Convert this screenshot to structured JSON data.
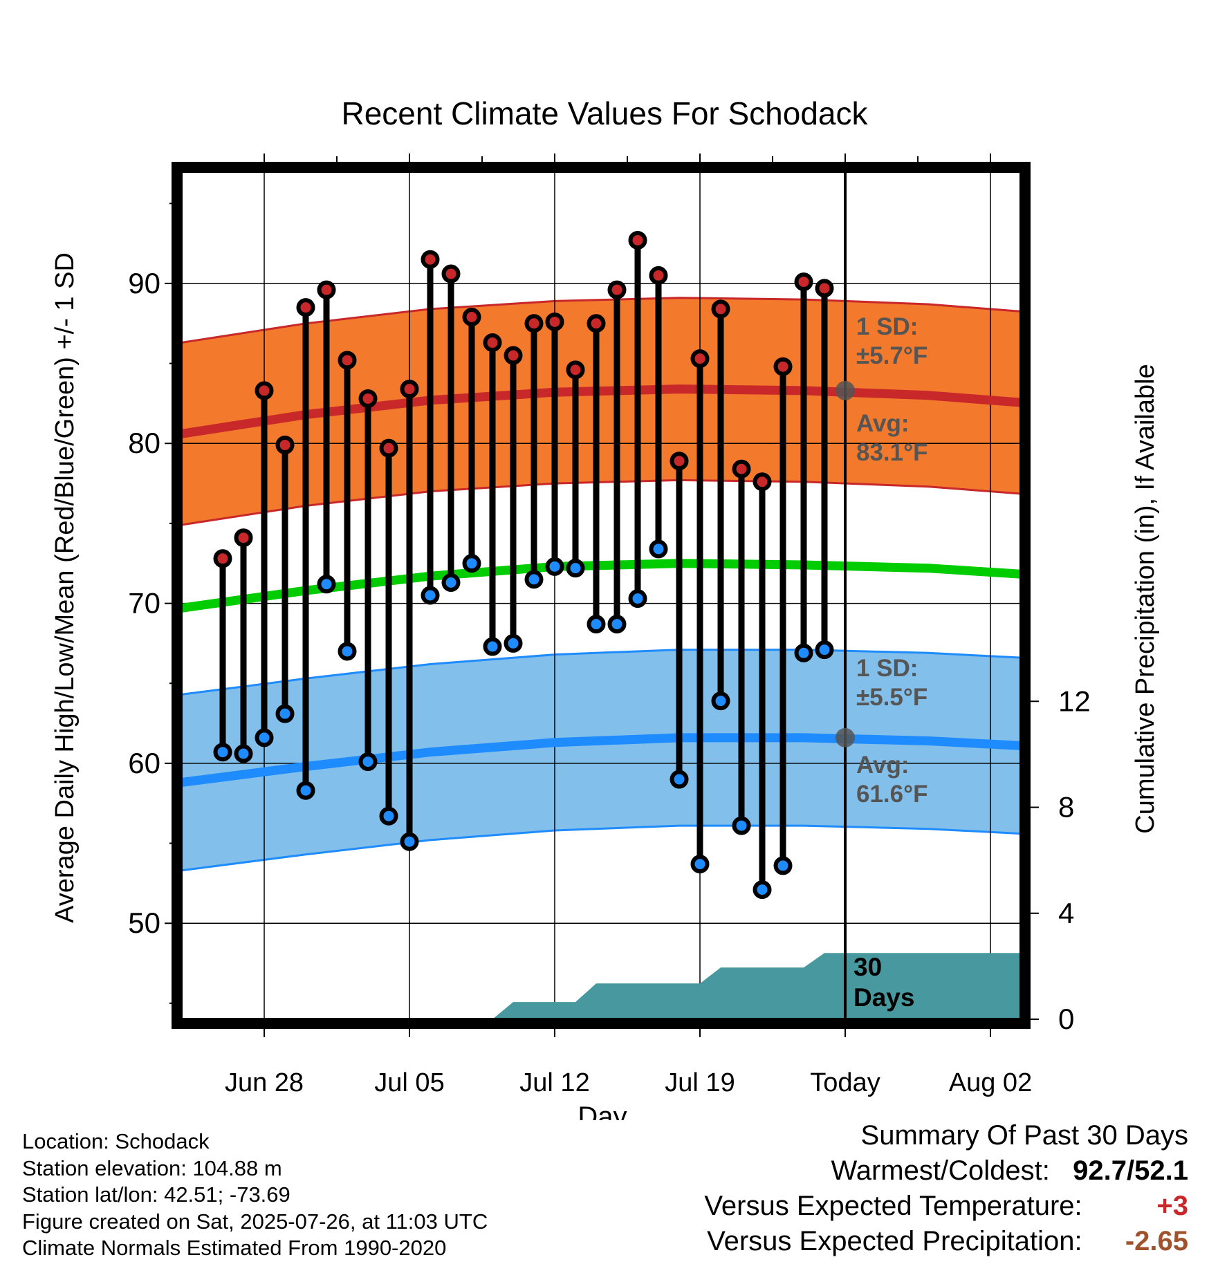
{
  "chart_data": {
    "type": "line",
    "title": "Recent Climate Values For Schodack",
    "xlabel": "Day",
    "ylabel": "Average Daily High/Low/Mean (Red/Blue/Green) +/- 1 SD",
    "ylabel_right": "Cumulative Precipitation (in), If Available",
    "x_ticks": [
      "Jun 28",
      "Jul 05",
      "Jul 12",
      "Jul 19",
      "Today",
      "Aug 02"
    ],
    "y_ticks": [
      "50",
      "60",
      "70",
      "80",
      "90"
    ],
    "y2_ticks": [
      "0",
      "4",
      "8",
      "12"
    ],
    "ylim": [
      44,
      97
    ],
    "y2lim": [
      0,
      32
    ],
    "xlim": [
      "2025-06-24",
      "2025-08-05"
    ],
    "today": "2025-07-26",
    "grid": true,
    "dates": [
      "2025-06-26",
      "2025-06-27",
      "2025-06-28",
      "2025-06-29",
      "2025-06-30",
      "2025-07-01",
      "2025-07-02",
      "2025-07-03",
      "2025-07-04",
      "2025-07-05",
      "2025-07-06",
      "2025-07-07",
      "2025-07-08",
      "2025-07-09",
      "2025-07-10",
      "2025-07-11",
      "2025-07-12",
      "2025-07-13",
      "2025-07-14",
      "2025-07-15",
      "2025-07-16",
      "2025-07-17",
      "2025-07-18",
      "2025-07-19",
      "2025-07-20",
      "2025-07-21",
      "2025-07-22",
      "2025-07-23",
      "2025-07-24",
      "2025-07-25"
    ],
    "series": [
      {
        "name": "High",
        "values": [
          72.8,
          74.1,
          83.3,
          79.9,
          88.5,
          89.6,
          85.2,
          82.8,
          79.7,
          83.4,
          91.5,
          90.6,
          87.9,
          86.3,
          85.5,
          87.5,
          87.6,
          84.6,
          87.5,
          89.6,
          92.7,
          90.5,
          78.9,
          85.3,
          88.4,
          78.4,
          77.6,
          84.8,
          90.1,
          89.7
        ]
      },
      {
        "name": "Low",
        "values": [
          60.7,
          60.6,
          61.6,
          63.1,
          58.3,
          71.2,
          67.0,
          60.1,
          56.7,
          55.1,
          70.5,
          71.3,
          72.5,
          67.3,
          67.5,
          71.5,
          72.3,
          72.2,
          68.7,
          68.7,
          70.3,
          73.4,
          59.0,
          53.7,
          63.9,
          56.1,
          52.1,
          53.6,
          66.9,
          67.1
        ]
      }
    ],
    "normals": {
      "dates": [
        "2025-06-24",
        "2025-06-30",
        "2025-07-06",
        "2025-07-12",
        "2025-07-18",
        "2025-07-24",
        "2025-07-30",
        "2025-08-05"
      ],
      "high_avg": [
        80.6,
        81.8,
        82.7,
        83.2,
        83.4,
        83.3,
        83.0,
        82.4
      ],
      "high_sd": 5.7,
      "low_avg": [
        58.8,
        59.8,
        60.7,
        61.3,
        61.6,
        61.6,
        61.4,
        61.0
      ],
      "low_sd": 5.5,
      "mean_avg": [
        69.7,
        70.8,
        71.7,
        72.3,
        72.5,
        72.4,
        72.2,
        71.7
      ]
    },
    "precip_cumulative": {
      "dates": [
        "2025-07-09",
        "2025-07-10",
        "2025-07-13",
        "2025-07-14",
        "2025-07-19",
        "2025-07-20",
        "2025-07-24",
        "2025-07-25",
        "2025-08-05"
      ],
      "values": [
        0,
        0.65,
        0.65,
        1.35,
        1.35,
        1.95,
        1.95,
        2.5,
        2.5
      ]
    },
    "colors": {
      "high": "#c8282a",
      "high_band": "#f37a2c",
      "low": "#1e8cff",
      "low_band": "#82bfea",
      "mean": "#00cc00",
      "precip": "#47999f",
      "annot": "#555555"
    }
  },
  "annotations": {
    "high_sd_label": "1 SD:",
    "high_sd_value": "±5.7°F",
    "high_avg_label": "Avg:",
    "high_avg_value": "83.1°F",
    "low_sd_label": "1 SD:",
    "low_sd_value": "±5.5°F",
    "low_avg_label": "Avg:",
    "low_avg_value": "61.6°F",
    "days_line1": "30",
    "days_line2": "Days"
  },
  "info": {
    "location": "Location: Schodack",
    "elevation": "Station elevation: 104.88 m",
    "latlon": "Station lat/lon: 42.51; -73.69",
    "created": "Figure created on Sat, 2025-07-26, at 11:03 UTC",
    "normals": "Climate Normals Estimated From 1990-2020"
  },
  "summary": {
    "title": "Summary Of Past 30 Days",
    "warm_cold_label": "Warmest/Coldest:",
    "warm_cold_value": "92.7/52.1",
    "temp_label": "Versus Expected Temperature:",
    "temp_value": "+3",
    "temp_color": "#c8282a",
    "precip_label": "Versus Expected Precipitation:",
    "precip_value": "-2.65",
    "precip_color": "#a0522d"
  }
}
